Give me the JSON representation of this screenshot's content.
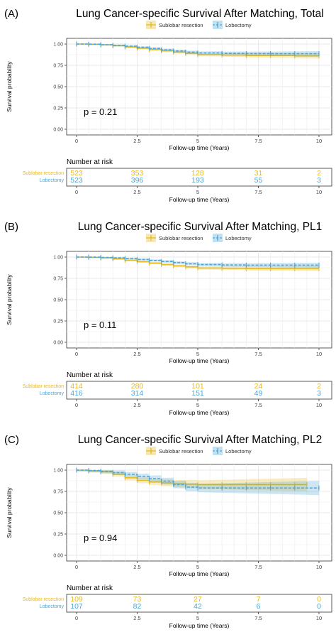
{
  "colors": {
    "sublobar": "#E8B923",
    "lobectomy": "#4DA6D8"
  },
  "chart_data": [
    {
      "type": "line",
      "panel_label": "(A)",
      "title": "Lung Cancer-specific Survival After Matching, Total",
      "xlabel": "Follow-up time (Years)",
      "ylabel": "Survival probability",
      "xlim": [
        0,
        10
      ],
      "ylim": [
        0,
        1
      ],
      "xticks": [
        "0",
        "2.5",
        "5",
        "7.5",
        "10"
      ],
      "yticks": [
        "0.00",
        "0.25",
        "0.50",
        "0.75",
        "1.00"
      ],
      "grid": true,
      "legend": "top",
      "pvalue": "p = 0.21",
      "series": [
        {
          "name": "Sublobar resection",
          "color": "#E8B923",
          "x": [
            0,
            0.5,
            1,
            1.5,
            2,
            2.5,
            3,
            3.5,
            4,
            4.5,
            5,
            6,
            7,
            8,
            9,
            10
          ],
          "y": [
            1.0,
            0.997,
            0.99,
            0.98,
            0.965,
            0.95,
            0.935,
            0.92,
            0.905,
            0.89,
            0.875,
            0.87,
            0.865,
            0.865,
            0.86,
            0.86
          ]
        },
        {
          "name": "Lobectomy",
          "color": "#4DA6D8",
          "x": [
            0,
            0.5,
            1,
            1.5,
            2,
            2.5,
            3,
            3.5,
            4,
            4.5,
            5,
            6,
            7,
            8,
            9,
            10
          ],
          "y": [
            1.0,
            0.998,
            0.992,
            0.985,
            0.975,
            0.962,
            0.948,
            0.932,
            0.918,
            0.905,
            0.895,
            0.89,
            0.888,
            0.887,
            0.887,
            0.887
          ]
        }
      ],
      "risk_table": {
        "title": "Number at risk",
        "times": [
          "0",
          "2.5",
          "5",
          "7.5",
          "10"
        ],
        "rows": [
          {
            "name": "Sublobar resection",
            "color": "#E8B923",
            "values": [
              "523",
              "353",
              "128",
              "31",
              "2"
            ]
          },
          {
            "name": "Lobectomy",
            "color": "#4DA6D8",
            "values": [
              "523",
              "396",
              "193",
              "55",
              "3"
            ]
          }
        ]
      }
    },
    {
      "type": "line",
      "panel_label": "(B)",
      "title": "Lung Cancer-specific Survival After Matching, PL1",
      "xlabel": "Follow-up time (Years)",
      "ylabel": "Survival probability",
      "xlim": [
        0,
        10
      ],
      "ylim": [
        0,
        1
      ],
      "xticks": [
        "0",
        "2.5",
        "5",
        "7.5",
        "10"
      ],
      "yticks": [
        "0.00",
        "0.25",
        "0.50",
        "0.75",
        "1.00"
      ],
      "grid": true,
      "legend": "top",
      "pvalue": "p = 0.11",
      "series": [
        {
          "name": "Sublobar resection",
          "color": "#E8B923",
          "x": [
            0,
            0.5,
            1,
            1.5,
            2,
            2.5,
            3,
            3.5,
            4,
            4.5,
            5,
            6,
            7,
            8,
            9,
            10
          ],
          "y": [
            1.0,
            0.997,
            0.99,
            0.978,
            0.962,
            0.945,
            0.928,
            0.912,
            0.897,
            0.885,
            0.872,
            0.868,
            0.865,
            0.865,
            0.865,
            0.865
          ]
        },
        {
          "name": "Lobectomy",
          "color": "#4DA6D8",
          "x": [
            0,
            0.5,
            1,
            1.5,
            2,
            2.5,
            3,
            3.5,
            4,
            4.5,
            5,
            6,
            7,
            8,
            9,
            10
          ],
          "y": [
            1.0,
            0.999,
            0.995,
            0.99,
            0.982,
            0.972,
            0.96,
            0.948,
            0.935,
            0.922,
            0.912,
            0.907,
            0.905,
            0.905,
            0.905,
            0.905
          ]
        }
      ],
      "risk_table": {
        "title": "Number at risk",
        "times": [
          "0",
          "2.5",
          "5",
          "7.5",
          "10"
        ],
        "rows": [
          {
            "name": "Sublobar resection",
            "color": "#E8B923",
            "values": [
              "414",
              "280",
              "101",
              "24",
              "2"
            ]
          },
          {
            "name": "Lobectomy",
            "color": "#4DA6D8",
            "values": [
              "416",
              "314",
              "151",
              "49",
              "3"
            ]
          }
        ]
      }
    },
    {
      "type": "line",
      "panel_label": "(C)",
      "title": "Lung Cancer-specific Survival After Matching, PL2",
      "xlabel": "Follow-up time (Years)",
      "ylabel": "Survival probability",
      "xlim": [
        0,
        10
      ],
      "ylim": [
        0,
        1
      ],
      "xticks": [
        "0",
        "2.5",
        "5",
        "7.5",
        "10"
      ],
      "yticks": [
        "0.00",
        "0.25",
        "0.50",
        "0.75",
        "1.00"
      ],
      "grid": true,
      "legend": "top",
      "pvalue": "p = 0.94",
      "series": [
        {
          "name": "Sublobar resection",
          "color": "#E8B923",
          "x": [
            0,
            0.5,
            1,
            1.5,
            2,
            2.5,
            3,
            3.5,
            4,
            4.5,
            5,
            6,
            7,
            8,
            9,
            9.5
          ],
          "y": [
            1.0,
            0.99,
            0.98,
            0.95,
            0.91,
            0.88,
            0.86,
            0.85,
            0.84,
            0.835,
            0.83,
            0.83,
            0.83,
            0.83,
            0.83,
            0.83
          ]
        },
        {
          "name": "Lobectomy",
          "color": "#4DA6D8",
          "x": [
            0,
            0.5,
            1,
            1.5,
            2,
            2.5,
            3,
            3.5,
            4,
            4.5,
            5,
            6,
            7,
            8,
            9,
            10
          ],
          "y": [
            1.0,
            0.995,
            0.985,
            0.97,
            0.95,
            0.925,
            0.9,
            0.87,
            0.83,
            0.8,
            0.79,
            0.79,
            0.79,
            0.79,
            0.79,
            0.79
          ]
        }
      ],
      "risk_table": {
        "title": "Number at risk",
        "times": [
          "0",
          "2.5",
          "5",
          "7.5",
          "10"
        ],
        "rows": [
          {
            "name": "Sublobar resection",
            "color": "#E8B923",
            "values": [
              "109",
              "73",
              "27",
              "7",
              "0"
            ]
          },
          {
            "name": "Lobectomy",
            "color": "#4DA6D8",
            "values": [
              "107",
              "82",
              "42",
              "6",
              "0"
            ]
          }
        ]
      }
    }
  ]
}
